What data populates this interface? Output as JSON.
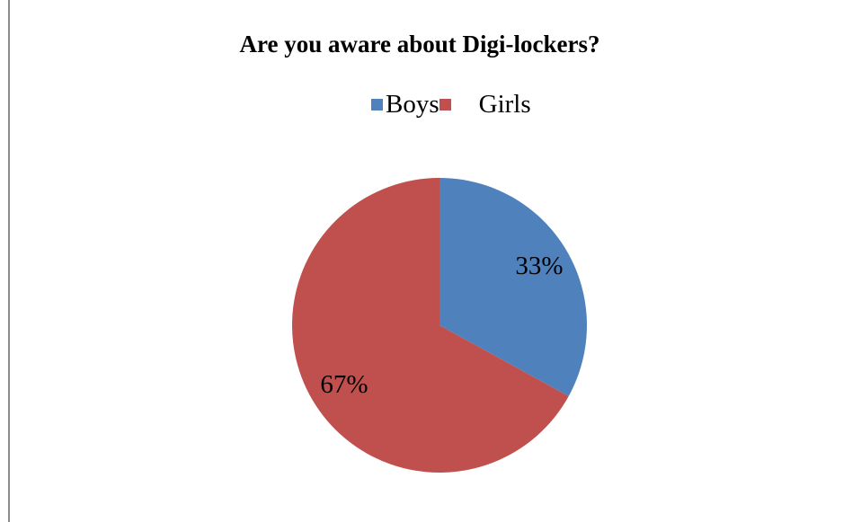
{
  "chart_data": {
    "type": "pie",
    "title": "Are you aware about Digi-lockers?",
    "categories": [
      "Boys",
      "Girls"
    ],
    "values": [
      33,
      67
    ],
    "data_labels": [
      "33%",
      "67%"
    ],
    "colors": [
      "#4f81bd",
      "#c0504d"
    ],
    "legend_position": "top"
  }
}
